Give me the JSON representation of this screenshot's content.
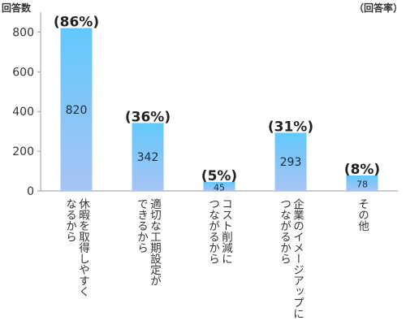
{
  "chart_data": {
    "type": "bar",
    "ylabel": "回答数",
    "right_label": "（回答率）",
    "ylim": [
      0,
      900
    ],
    "yticks": [
      0,
      200,
      400,
      600,
      800
    ],
    "categories": [
      [
        "休暇を取得しやすく",
        "なるから"
      ],
      [
        "適切な工期設定が",
        "できるから"
      ],
      [
        "コスト削減に",
        "つながるから"
      ],
      [
        "企業のイメージアップに",
        "つながるから"
      ],
      [
        "その他"
      ]
    ],
    "values": [
      820,
      342,
      45,
      293,
      78
    ],
    "value_labels": [
      "820",
      "342",
      "45",
      "293",
      "78"
    ],
    "percent_labels": [
      "(86%)",
      "(36%)",
      "(5%)",
      "(31%)",
      "(8%)"
    ],
    "grid": false,
    "colors": {
      "bar_top": "#62c8fb",
      "bar_bottom": "#a7c4f4",
      "axis": "#999999",
      "text": "#333333"
    }
  }
}
